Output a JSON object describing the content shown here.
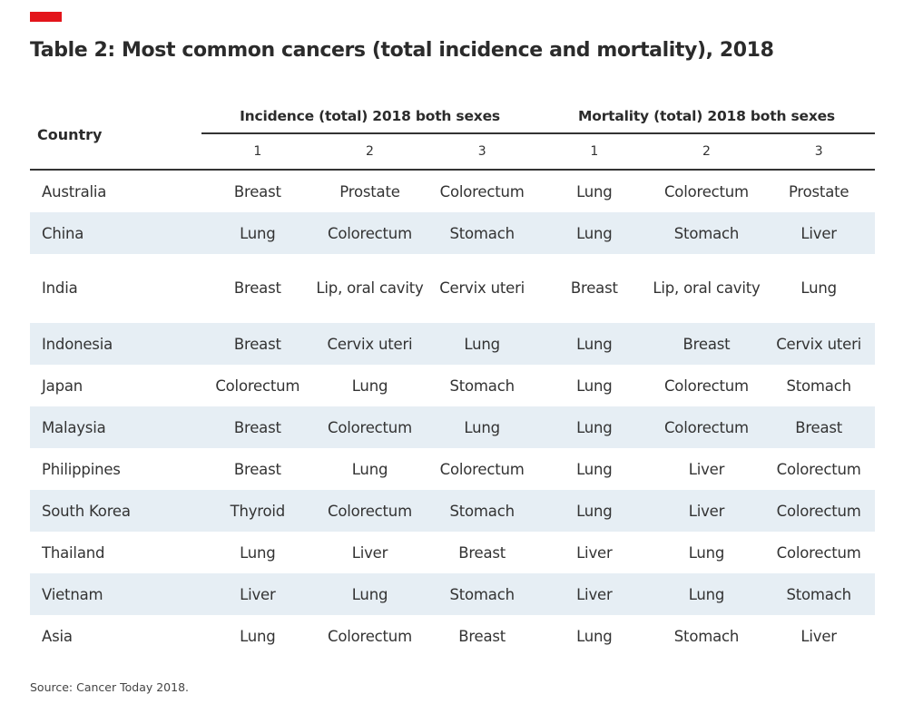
{
  "colors": {
    "accent": "#e3151b",
    "row_shade": "#e6eef4",
    "rule": "#333333"
  },
  "title": "Table 2: Most common cancers (total incidence and mortality), 2018",
  "table": {
    "country_header": "Country",
    "groups": [
      "Incidence (total) 2018 both sexes",
      "Mortality (total) 2018 both sexes"
    ],
    "ranks": [
      "1",
      "2",
      "3",
      "1",
      "2",
      "3"
    ],
    "rows": [
      {
        "country": "Australia",
        "cells": [
          "Breast",
          "Prostate",
          "Colorectum",
          "Lung",
          "Colorectum",
          "Prostate"
        ]
      },
      {
        "country": "China",
        "cells": [
          "Lung",
          "Colorectum",
          "Stomach",
          "Lung",
          "Stomach",
          "Liver"
        ]
      },
      {
        "country": "India",
        "cells": [
          "Breast",
          "Lip, oral cavity",
          "Cervix uteri",
          "Breast",
          "Lip, oral cavity",
          "Lung"
        ]
      },
      {
        "country": "Indonesia",
        "cells": [
          "Breast",
          "Cervix uteri",
          "Lung",
          "Lung",
          "Breast",
          "Cervix uteri"
        ]
      },
      {
        "country": "Japan",
        "cells": [
          "Colorectum",
          "Lung",
          "Stomach",
          "Lung",
          "Colorectum",
          "Stomach"
        ]
      },
      {
        "country": "Malaysia",
        "cells": [
          "Breast",
          "Colorectum",
          "Lung",
          "Lung",
          "Colorectum",
          "Breast"
        ]
      },
      {
        "country": "Philippines",
        "cells": [
          "Breast",
          "Lung",
          "Colorectum",
          "Lung",
          "Liver",
          "Colorectum"
        ]
      },
      {
        "country": "South Korea",
        "cells": [
          "Thyroid",
          "Colorectum",
          "Stomach",
          "Lung",
          "Liver",
          "Colorectum"
        ]
      },
      {
        "country": "Thailand",
        "cells": [
          "Lung",
          "Liver",
          "Breast",
          "Liver",
          "Lung",
          "Colorectum"
        ]
      },
      {
        "country": "Vietnam",
        "cells": [
          "Liver",
          "Lung",
          "Stomach",
          "Liver",
          "Lung",
          "Stomach"
        ]
      },
      {
        "country": "Asia",
        "cells": [
          "Lung",
          "Colorectum",
          "Breast",
          "Lung",
          "Stomach",
          "Liver"
        ]
      }
    ]
  },
  "source": "Source: Cancer Today 2018."
}
